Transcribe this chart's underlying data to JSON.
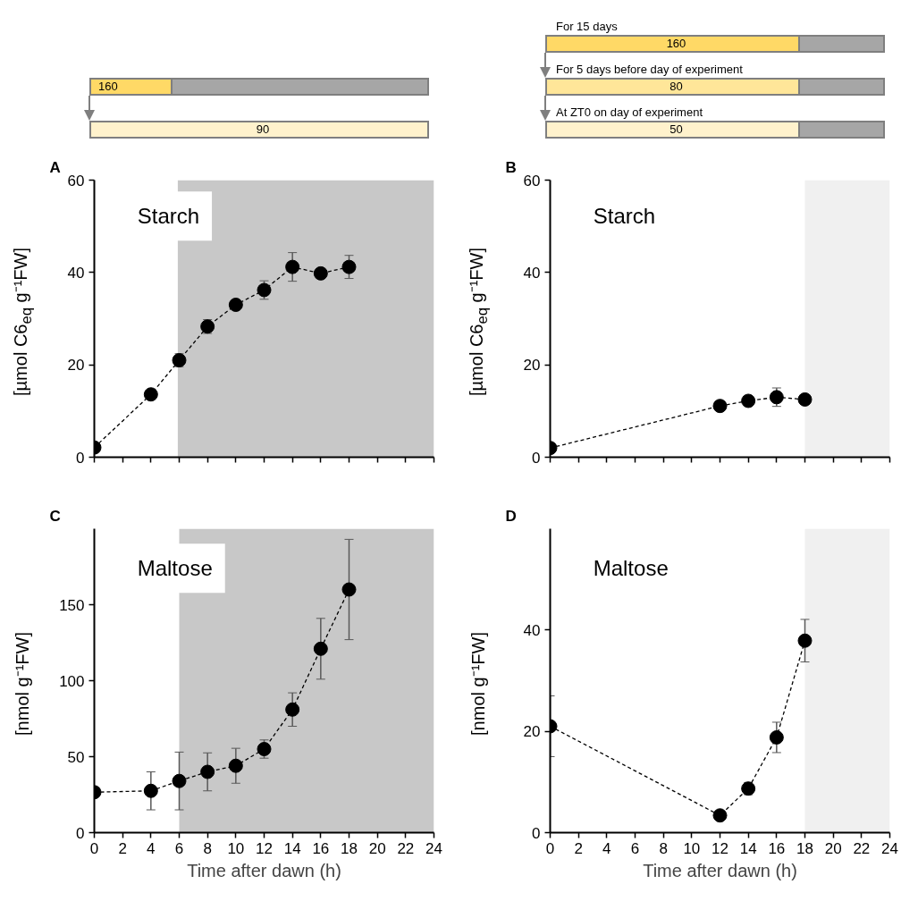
{
  "chart_data": [
    {
      "type": "line",
      "title": "A",
      "ylabel": "[µmol C6$_{eq}$ g⁻¹FW]",
      "x": [
        0,
        4,
        6,
        8,
        10,
        12,
        14,
        16,
        18
      ],
      "series": [
        {
          "color": "#000000",
          "values": [
            2.1,
            13.6,
            21.0,
            28.3,
            33.0,
            36.2,
            41.2,
            39.8,
            41.2
          ],
          "errors": [
            null,
            null,
            1.4,
            1.5,
            1,
            2,
            3.1,
            0.6,
            2.5
          ]
        }
      ],
      "xlim": [
        0,
        24
      ],
      "xticks": [
        0,
        2,
        4,
        6,
        8,
        10,
        12,
        14,
        16,
        18,
        20,
        22,
        24
      ],
      "ylim": [
        0,
        60
      ],
      "yticks": [
        0,
        20,
        40,
        60
      ],
      "tick_labels": "y",
      "bands": [
        {
          "axis": "x",
          "from": 5.9,
          "to": 24,
          "color": "#c8c8c8"
        }
      ],
      "annotations": [
        "Starch",
        "160",
        "90"
      ],
      "grid": false,
      "marker": "circle",
      "line_style": "dashed"
    },
    {
      "type": "line",
      "title": "B",
      "ylabel": "[µmol C6$_{eq}$ g⁻¹FW]",
      "x": [
        0,
        12,
        14,
        16,
        18
      ],
      "series": [
        {
          "color": "#000000",
          "values": [
            2.0,
            11.1,
            12.2,
            13.0,
            12.5
          ],
          "errors": [
            null,
            null,
            null,
            2,
            null
          ]
        }
      ],
      "xlim": [
        0,
        24
      ],
      "xticks": [
        0,
        2,
        4,
        6,
        8,
        10,
        12,
        14,
        16,
        18,
        20,
        22,
        24
      ],
      "ylim": [
        0,
        60
      ],
      "yticks": [
        0,
        20,
        40,
        60
      ],
      "tick_labels": "y",
      "bands": [
        {
          "axis": "x",
          "from": 18,
          "to": 24,
          "color": "#f0f0f0"
        }
      ],
      "annotations": [
        "Starch",
        "For 15 days",
        "160",
        "For 5 days before day of experiment",
        "80",
        "At ZT0 on day of experiment",
        "50"
      ],
      "grid": false,
      "marker": "circle",
      "line_style": "dashed"
    },
    {
      "type": "line",
      "title": "C",
      "xlabel": "Time after dawn (h)",
      "ylabel": "[nmol g⁻¹FW]",
      "x": [
        0,
        4,
        6,
        8,
        10,
        12,
        14,
        16,
        18
      ],
      "series": [
        {
          "color": "#000000",
          "values": [
            26.6,
            27.5,
            34,
            40,
            44,
            55,
            81,
            121,
            160
          ],
          "errors": [
            null,
            12.5,
            19,
            12.5,
            11.5,
            6,
            11,
            20,
            33
          ]
        }
      ],
      "xlim": [
        0,
        24
      ],
      "xticks": [
        0,
        2,
        4,
        6,
        8,
        10,
        12,
        14,
        16,
        18,
        20,
        22,
        24
      ],
      "ylim": [
        0,
        200
      ],
      "yticks": [
        0,
        50,
        100,
        150
      ],
      "bands": [
        {
          "axis": "x",
          "from": 6,
          "to": 24,
          "color": "#c8c8c8"
        }
      ],
      "annotations": [
        "Maltose"
      ],
      "grid": false,
      "marker": "circle",
      "line_style": "dashed"
    },
    {
      "type": "line",
      "title": "D",
      "xlabel": "Time after dawn (h)",
      "ylabel": "[nmol g⁻¹FW]",
      "x": [
        0,
        12,
        14,
        16,
        18
      ],
      "series": [
        {
          "color": "#000000",
          "values": [
            21,
            3.4,
            8.7,
            18.8,
            37.9
          ],
          "errors": [
            6,
            null,
            1.2,
            3,
            4.2
          ]
        }
      ],
      "xlim": [
        0,
        24
      ],
      "xticks": [
        0,
        2,
        4,
        6,
        8,
        10,
        12,
        14,
        16,
        18,
        20,
        22,
        24
      ],
      "ylim": [
        0,
        60
      ],
      "yticks": [
        0,
        20,
        40
      ],
      "bands": [
        {
          "axis": "x",
          "from": 18,
          "to": 24,
          "color": "#f0f0f0"
        }
      ],
      "annotations": [
        "Maltose"
      ],
      "grid": false,
      "marker": "circle",
      "line_style": "dashed"
    }
  ]
}
